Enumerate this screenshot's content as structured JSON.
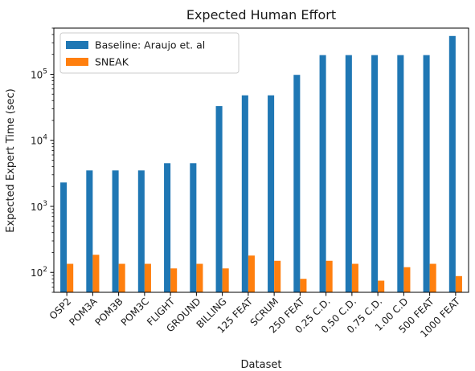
{
  "chart_data": {
    "type": "bar",
    "title": "Expected Human Effort",
    "xlabel": "Dataset",
    "ylabel": "Expected Expert Time (sec)",
    "yscale": "log",
    "ylim": [
      50,
      500000
    ],
    "yticks": [
      {
        "value": 100,
        "base": "10",
        "exp": "2"
      },
      {
        "value": 1000,
        "base": "10",
        "exp": "3"
      },
      {
        "value": 10000,
        "base": "10",
        "exp": "4"
      },
      {
        "value": 100000,
        "base": "10",
        "exp": "5"
      }
    ],
    "categories": [
      "OSP2",
      "POM3A",
      "POM3B",
      "POM3C",
      "FLIGHT",
      "GROUND",
      "BILLING",
      "125 FEAT",
      "SCRUM",
      "250 FEAT",
      "0.25 C.D.",
      "0.50 C.D.",
      "0.75 C.D.",
      "1.00 C.D",
      "500 FEAT",
      "1000 FEAT"
    ],
    "series": [
      {
        "name": "Baseline: Araujo et. al",
        "color": "#1f77b4",
        "values": [
          2300,
          3500,
          3500,
          3500,
          4500,
          4500,
          33000,
          48000,
          48000,
          98000,
          195000,
          195000,
          195000,
          195000,
          195000,
          380000
        ]
      },
      {
        "name": "SNEAK",
        "color": "#ff7f0e",
        "values": [
          135,
          185,
          135,
          135,
          115,
          135,
          115,
          180,
          150,
          80,
          150,
          135,
          75,
          120,
          135,
          88
        ]
      }
    ],
    "legend_position": "top-left",
    "grid": false
  }
}
